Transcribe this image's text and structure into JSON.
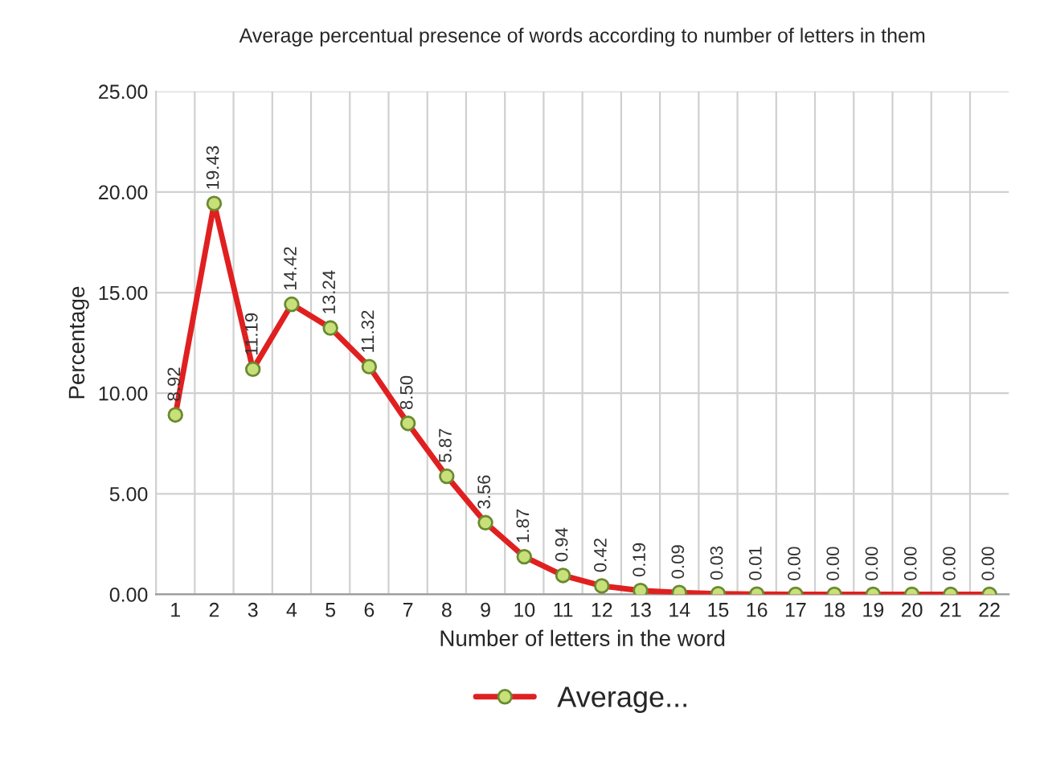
{
  "chart_data": {
    "type": "line",
    "title": "Average percentual presence of words according to number of letters in them",
    "xlabel": "Number of letters in the word",
    "ylabel": "Percentage",
    "categories": [
      "1",
      "2",
      "3",
      "4",
      "5",
      "6",
      "7",
      "8",
      "9",
      "10",
      "11",
      "12",
      "13",
      "14",
      "15",
      "16",
      "17",
      "18",
      "19",
      "20",
      "21",
      "22"
    ],
    "series": [
      {
        "name": "Average...",
        "color": "#e02020",
        "values": [
          8.92,
          19.43,
          11.19,
          14.42,
          13.24,
          11.32,
          8.5,
          5.87,
          3.56,
          1.87,
          0.94,
          0.42,
          0.19,
          0.09,
          0.03,
          0.01,
          0.0,
          0.0,
          0.0,
          0.0,
          0.0,
          0.0
        ],
        "value_labels": [
          "8.92",
          "19.43",
          "11.19",
          "14.42",
          "13.24",
          "11.32",
          "8.50",
          "5.87",
          "3.56",
          "1.87",
          "0.94",
          "0.42",
          "0.19",
          "0.09",
          "0.03",
          "0.01",
          "0.00",
          "0.00",
          "0.00",
          "0.00",
          "0.00",
          "0.00"
        ]
      }
    ],
    "ylim": [
      0,
      25
    ],
    "yticks": [
      {
        "value": 0,
        "label": "0.00"
      },
      {
        "value": 5,
        "label": "5.00"
      },
      {
        "value": 10,
        "label": "10.00"
      },
      {
        "value": 15,
        "label": "15.00"
      },
      {
        "value": 20,
        "label": "20.00"
      },
      {
        "value": 25,
        "label": "25.00"
      }
    ],
    "grid": true,
    "legend": "bottom",
    "marker": "circle",
    "line_style": "solid"
  }
}
